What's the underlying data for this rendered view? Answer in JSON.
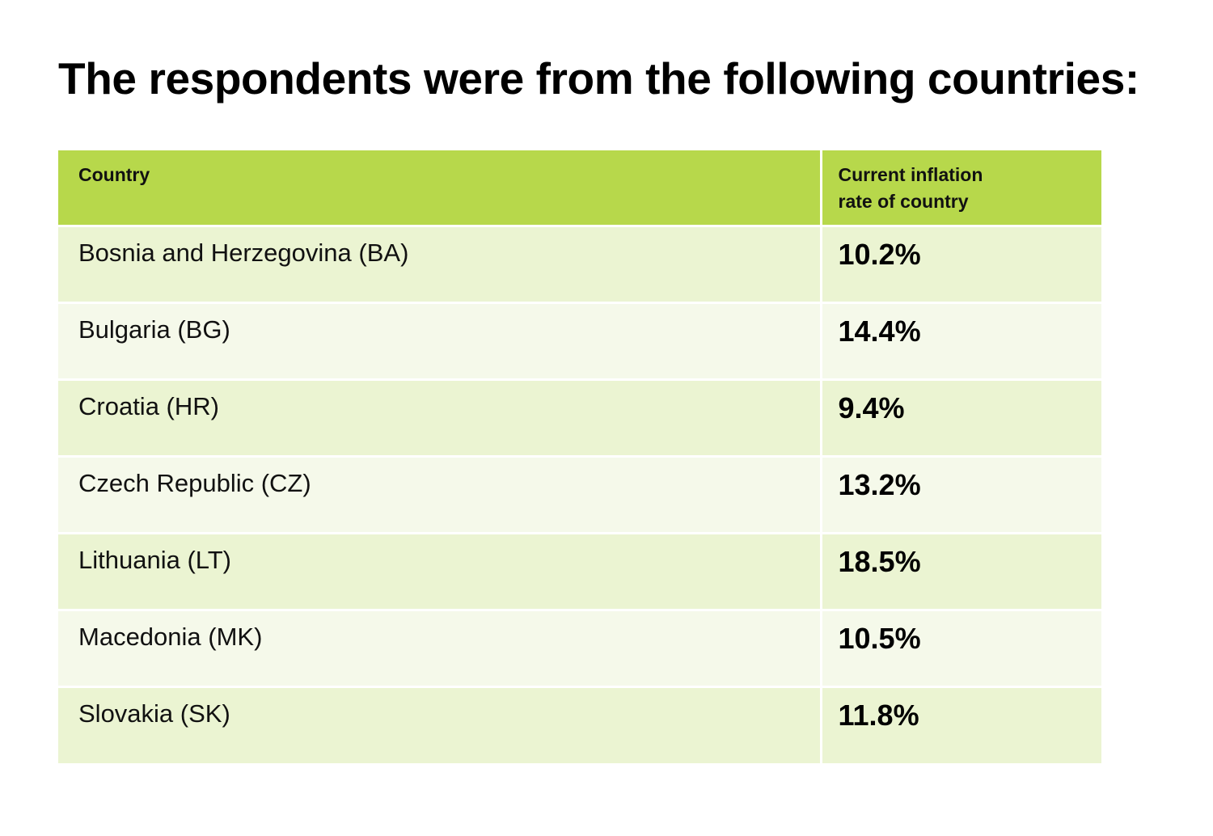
{
  "title": "The respondents were from the following countries:",
  "table": {
    "headers": {
      "country": "Country",
      "rate_line1": "Current inflation",
      "rate_line2": "rate of country"
    },
    "rows": [
      {
        "country": "Bosnia and Herzegovina (BA)",
        "rate": "10.2%"
      },
      {
        "country": "Bulgaria (BG)",
        "rate": "14.4%"
      },
      {
        "country": "Croatia (HR)",
        "rate": "9.4%"
      },
      {
        "country": "Czech Republic (CZ)",
        "rate": "13.2%"
      },
      {
        "country": "Lithuania (LT)",
        "rate": "18.5%"
      },
      {
        "country": "Macedonia (MK)",
        "rate": "10.5%"
      },
      {
        "country": "Slovakia (SK)",
        "rate": "11.8%"
      }
    ]
  },
  "colors": {
    "header_bg": "#b7d84b",
    "row_odd_bg": "#ebf4d2",
    "row_even_bg": "#f5f9ea"
  }
}
